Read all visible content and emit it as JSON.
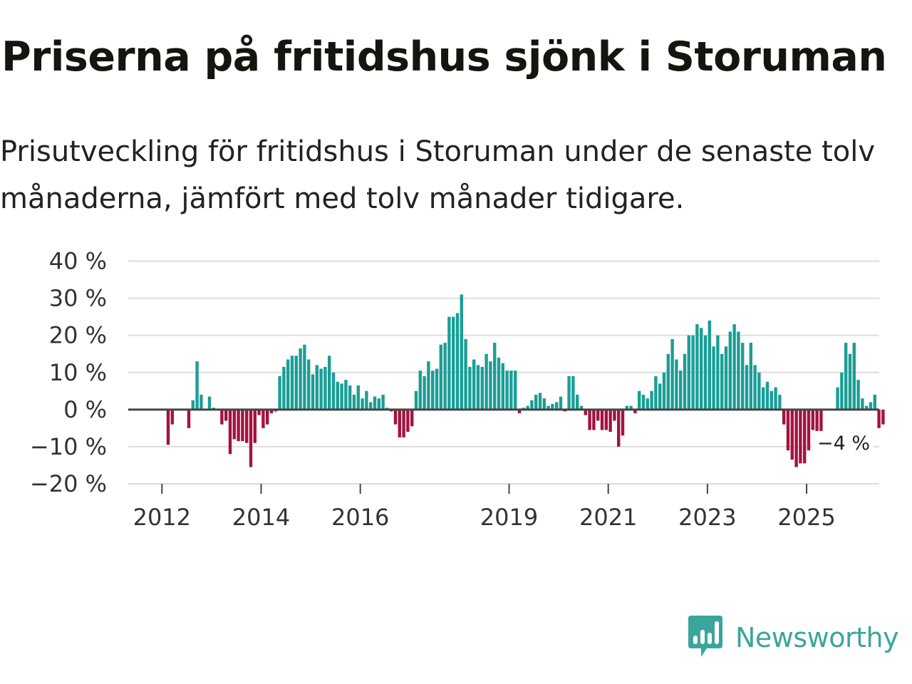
{
  "title": "Priserna på fritidshus sjönk i Storuman",
  "subtitle": "Prisutveckling för fritidshus i Storuman under de senaste tolv månaderna, jämfört med tolv månader tidigare.",
  "brand": {
    "name": "Newsworthy",
    "icon": "newsworthy-logo-icon",
    "color": "#3aa69b"
  },
  "colors": {
    "positive": "#1a9e96",
    "negative": "#a3123f",
    "grid": "#dddddd",
    "zero": "#444444"
  },
  "chart_data": {
    "type": "bar",
    "title": "Priserna på fritidshus sjönk i Storuman",
    "ylabel": "",
    "xlabel": "",
    "ylim": [
      -20,
      40
    ],
    "yticks": [
      40,
      30,
      20,
      10,
      0,
      -10,
      -20
    ],
    "ytick_labels": [
      "40 %",
      "30 %",
      "20 %",
      "10 %",
      "0 %",
      "−10 %",
      "−20 %"
    ],
    "xticks": [
      "2012",
      "2014",
      "2016",
      "2019",
      "2021",
      "2023",
      "2025"
    ],
    "start": "2011-01",
    "end_label": "−4 %",
    "series": [
      {
        "name": "Prisutveckling (12 mån)",
        "values": [
          null,
          null,
          null,
          null,
          null,
          null,
          null,
          null,
          null,
          null,
          null,
          null,
          null,
          -9.5,
          -4,
          null,
          null,
          null,
          -5,
          2.5,
          13,
          4,
          null,
          3.5,
          0.5,
          null,
          -4,
          -3,
          -12,
          -8,
          -8.5,
          -8.5,
          -9,
          -15.5,
          -9,
          -1.5,
          -5,
          -4,
          -1,
          -0.5,
          9,
          11.5,
          13.5,
          14.5,
          14.5,
          16.5,
          17.5,
          13.5,
          9.5,
          12,
          11,
          11.5,
          14.5,
          10,
          7.5,
          7,
          8,
          6.5,
          4,
          6.5,
          3,
          5,
          2,
          3.5,
          3,
          4,
          0.5,
          -0.5,
          -4,
          -7.5,
          -7.5,
          -6,
          -4.5,
          5,
          10.5,
          9,
          13,
          10.5,
          11,
          17.5,
          18,
          25,
          25,
          26,
          31,
          19,
          11.5,
          13.5,
          12,
          11.5,
          15,
          13,
          18,
          14,
          12.5,
          10.5,
          10.5,
          10.5,
          -1,
          0.5,
          1,
          2.5,
          4,
          4.5,
          3,
          1,
          1.5,
          2,
          3.5,
          -0.5,
          9,
          9,
          4,
          1,
          -1.5,
          -5.5,
          -5.5,
          -3,
          -5.5,
          -5.5,
          -6,
          -3,
          -10,
          -7,
          1,
          1,
          -1,
          5,
          4,
          3,
          5,
          9,
          7,
          10,
          15,
          19,
          13.5,
          10.5,
          15,
          20,
          20,
          23,
          22,
          20,
          24,
          17,
          20,
          15,
          17,
          21,
          23,
          21,
          18,
          12,
          18,
          12,
          10,
          6,
          7.5,
          5,
          6,
          4,
          -4,
          -11,
          -13.5,
          -15.5,
          -14.5,
          -14.5,
          -11,
          -5.5,
          -9,
          -10,
          null,
          null,
          null,
          6,
          10,
          18,
          15,
          18,
          8,
          3,
          1,
          2,
          4,
          -5,
          -4
        ]
      }
    ]
  }
}
